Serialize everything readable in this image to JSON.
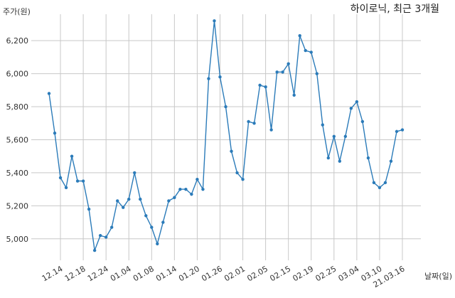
{
  "chart_data": {
    "type": "line",
    "title": "하이로닉, 최근 3개월",
    "ylabel": "주가(원)",
    "xlabel": "날짜(일)",
    "ylim": [
      4870,
      6360
    ],
    "yticks": [
      5000,
      5200,
      5400,
      5600,
      5800,
      6000,
      6200
    ],
    "ytick_labels": [
      "5,000",
      "5,200",
      "5,400",
      "5,600",
      "5,800",
      "6,000",
      "6,200"
    ],
    "xtick_labels": [
      "12.14",
      "12.18",
      "12.24",
      "01.04",
      "01.08",
      "01.14",
      "01.20",
      "01.26",
      "02.01",
      "02.05",
      "02.15",
      "02.19",
      "02.25",
      "03.04",
      "03.10",
      "21.03.16"
    ],
    "xtick_index": [
      2,
      6,
      10,
      14,
      18,
      22,
      26,
      30,
      34,
      38,
      42,
      46,
      50,
      54,
      58,
      62
    ],
    "grid": true,
    "color": "#2b7bb9",
    "series": [
      {
        "name": "",
        "values": [
          5880,
          5640,
          5370,
          5310,
          5500,
          5350,
          5350,
          5180,
          4930,
          5020,
          5010,
          5070,
          5230,
          5190,
          5240,
          5400,
          5240,
          5140,
          5070,
          4970,
          5100,
          5230,
          5250,
          5300,
          5300,
          5270,
          5360,
          5300,
          5970,
          6320,
          5980,
          5800,
          5530,
          5400,
          5360,
          5710,
          5700,
          5930,
          5920,
          5660,
          6010,
          6010,
          6060,
          5870,
          6230,
          6140,
          6130,
          6000,
          5690,
          5490,
          5620,
          5470,
          5620,
          5790,
          5830,
          5710,
          5490,
          5340,
          5310,
          5340,
          5470,
          5650,
          5660
        ]
      }
    ]
  }
}
